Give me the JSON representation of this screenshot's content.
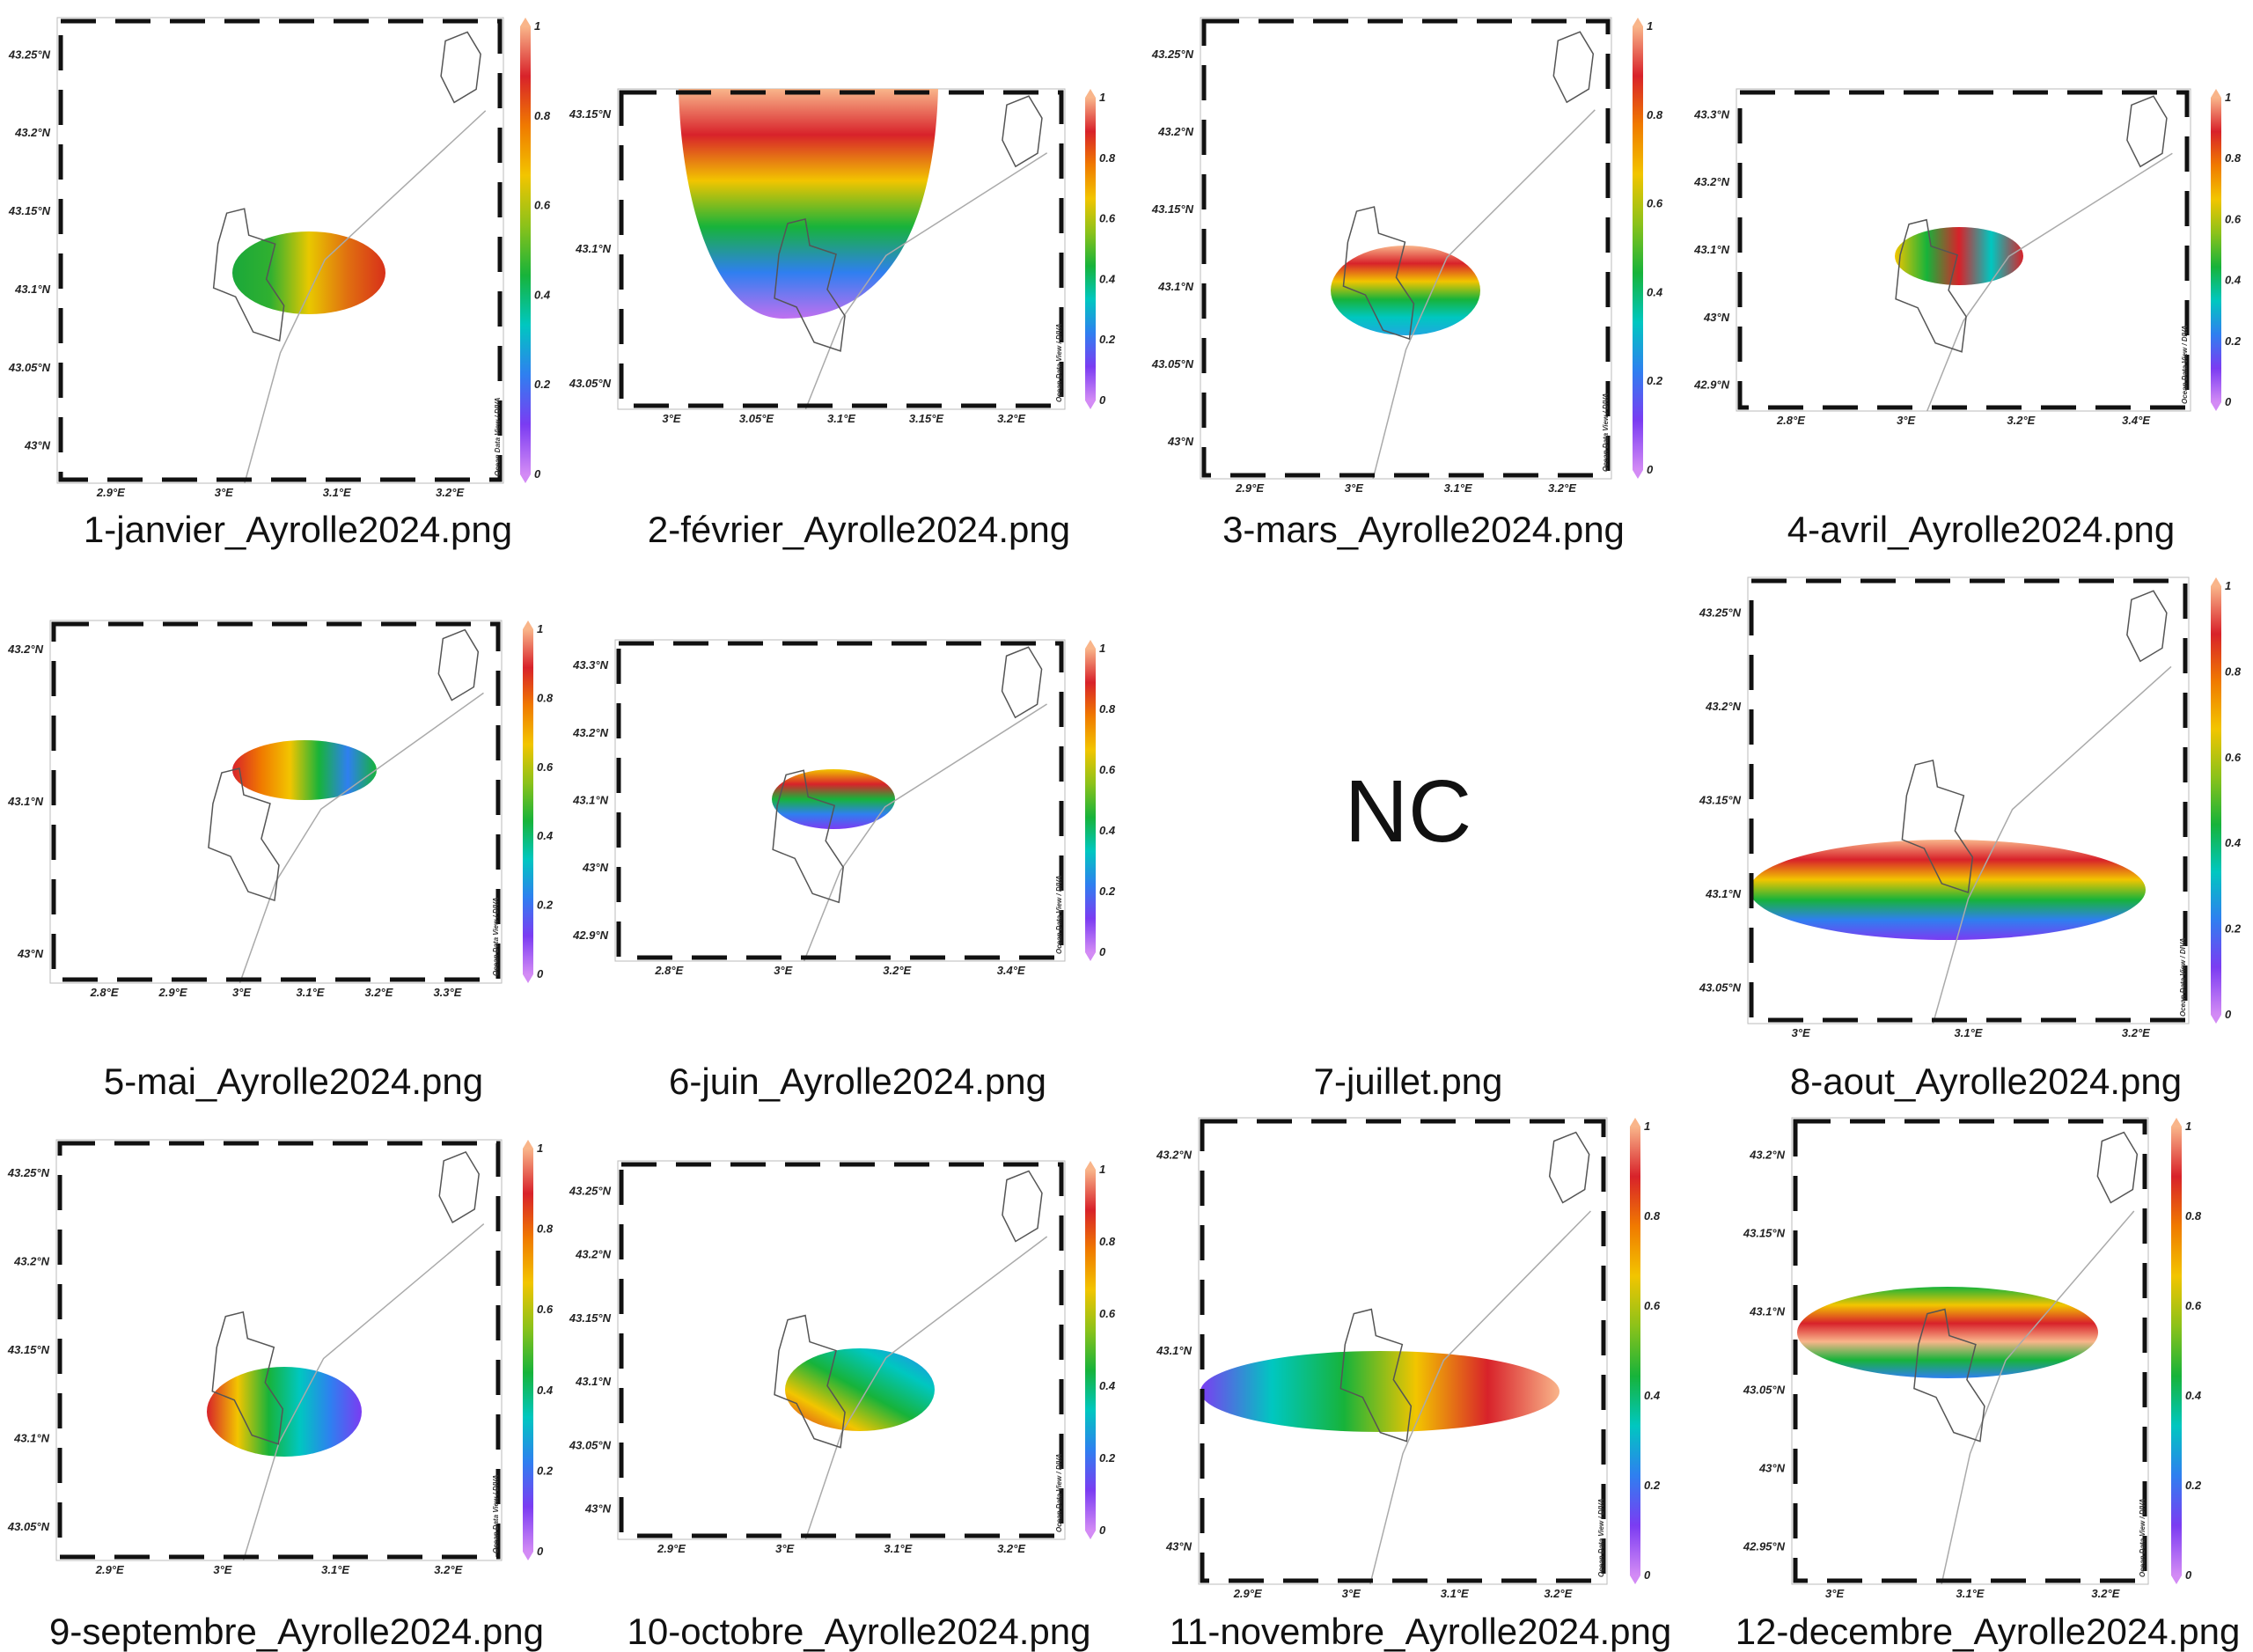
{
  "colorbar": {
    "ticks": [
      "0",
      "0.2",
      "0.4",
      "0.6",
      "0.8",
      "1"
    ],
    "colors": [
      "#d38bf5",
      "#7b3cf2",
      "#2f7ff0",
      "#00c7c0",
      "#17b33a",
      "#8cc21a",
      "#f2c500",
      "#f07a00",
      "#d8222a",
      "#f9b58a"
    ],
    "watermark": "Ocean Data View / DIVA"
  },
  "maps": [
    {
      "caption": "1-janvier_Ayrolle2024.png",
      "lat": [
        "43.25°N",
        "43.2°N",
        "43.15°N",
        "43.1°N",
        "43.05°N",
        "43°N"
      ],
      "lon": [
        "2.9°E",
        "3°E",
        "3.1°E",
        "3.2°E"
      ],
      "field": [
        "#1aa83a",
        "#30b030",
        "#e8c800",
        "#e07010",
        "#d8301a"
      ]
    },
    {
      "caption": "2-février_Ayrolle2024.png",
      "lat": [
        "43.15°N",
        "43.1°N",
        "43.05°N"
      ],
      "lon": [
        "3°E",
        "3.05°E",
        "3.1°E",
        "3.15°E",
        "3.2°E"
      ],
      "field": [
        "#f9b58a",
        "#d8222a",
        "#f2c500",
        "#17b33a",
        "#2f7ff0",
        "#c070f0"
      ]
    },
    {
      "caption": "3-mars_Ayrolle2024.png",
      "lat": [
        "43.25°N",
        "43.2°N",
        "43.15°N",
        "43.1°N",
        "43.05°N",
        "43°N"
      ],
      "lon": [
        "2.9°E",
        "3°E",
        "3.1°E",
        "3.2°E"
      ],
      "field": [
        "#f9b58a",
        "#d8222a",
        "#f2c500",
        "#17b33a",
        "#00c7c0",
        "#20a8e0"
      ]
    },
    {
      "caption": "4-avril_Ayrolle2024.png",
      "lat": [
        "43.3°N",
        "43.2°N",
        "43.1°N",
        "43°N",
        "42.9°N"
      ],
      "lon": [
        "2.8°E",
        "3°E",
        "3.2°E",
        "3.4°E"
      ],
      "field": [
        "#f2c500",
        "#17b33a",
        "#d8222a",
        "#00c7c0",
        "#d8222a"
      ]
    },
    {
      "caption": "5-mai_Ayrolle2024.png",
      "lat": [
        "43.2°N",
        "43.1°N",
        "43°N"
      ],
      "lon": [
        "2.8°E",
        "2.9°E",
        "3°E",
        "3.1°E",
        "3.2°E",
        "3.3°E"
      ],
      "field": [
        "#d8222a",
        "#f07a00",
        "#f2c500",
        "#17b33a",
        "#2f7ff0",
        "#17b33a"
      ]
    },
    {
      "caption": "6-juin_Ayrolle2024.png",
      "lat": [
        "43.3°N",
        "43.2°N",
        "43.1°N",
        "43°N",
        "42.9°N"
      ],
      "lon": [
        "2.8°E",
        "3°E",
        "3.2°E",
        "3.4°E"
      ],
      "field": [
        "#f2c500",
        "#d8222a",
        "#17b33a",
        "#2f7ff0",
        "#7b3cf2"
      ]
    },
    {
      "caption": "7-juillet.png",
      "nc": "NC"
    },
    {
      "caption": "8-aout_Ayrolle2024.png",
      "lat": [
        "43.25°N",
        "43.2°N",
        "43.15°N",
        "43.1°N",
        "43.05°N"
      ],
      "lon": [
        "3°E",
        "3.1°E",
        "3.2°E"
      ],
      "field": [
        "#f9b58a",
        "#d8222a",
        "#f2c500",
        "#17b33a",
        "#2f7ff0",
        "#7b3cf2"
      ]
    },
    {
      "caption": "9-septembre_Ayrolle2024.png",
      "lat": [
        "43.25°N",
        "43.2°N",
        "43.15°N",
        "43.1°N",
        "43.05°N"
      ],
      "lon": [
        "2.9°E",
        "3°E",
        "3.1°E",
        "3.2°E"
      ],
      "field": [
        "#d8222a",
        "#f2c500",
        "#17b33a",
        "#00c7c0",
        "#2f7ff0",
        "#7b3cf2"
      ]
    },
    {
      "caption": "10-octobre_Ayrolle2024.png",
      "lat": [
        "43.25°N",
        "43.2°N",
        "43.15°N",
        "43.1°N",
        "43.05°N",
        "43°N"
      ],
      "lon": [
        "2.9°E",
        "3°E",
        "3.1°E",
        "3.2°E"
      ],
      "field": [
        "#d8222a",
        "#f2c500",
        "#17b33a",
        "#00c7c0",
        "#2f7ff0"
      ]
    },
    {
      "caption": "11-novembre_Ayrolle2024.png",
      "lat": [
        "43.2°N",
        "43.1°N",
        "43°N"
      ],
      "lon": [
        "2.9°E",
        "3°E",
        "3.1°E",
        "3.2°E"
      ],
      "field": [
        "#7b3cf2",
        "#00c7c0",
        "#17b33a",
        "#f2c500",
        "#d8222a",
        "#f9b58a"
      ]
    },
    {
      "caption": "12-decembre_Ayrolle2024.png",
      "lat": [
        "43.2°N",
        "43.15°N",
        "43.1°N",
        "43.05°N",
        "43°N",
        "42.95°N"
      ],
      "lon": [
        "3°E",
        "3.1°E",
        "3.2°E"
      ],
      "field": [
        "#17b33a",
        "#f2c500",
        "#d8222a",
        "#f9b58a",
        "#17b33a",
        "#2f7ff0"
      ]
    }
  ]
}
